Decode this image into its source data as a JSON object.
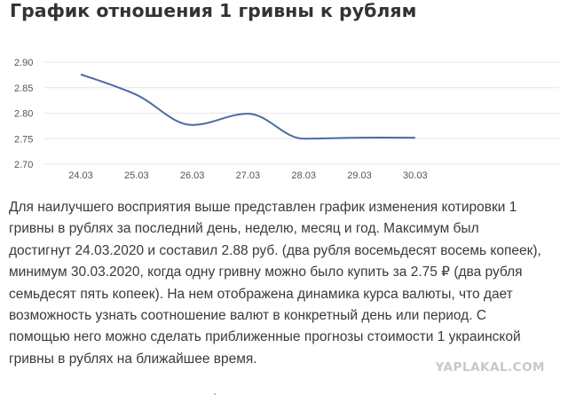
{
  "page": {
    "title": "График отношения 1 гривны к рублям",
    "description": "Для наилучшего восприятия выше представлен график изменения котировки 1 гривны в рублях за последний день, неделю, месяц и год. Максимум был достигнут 24.03.2020 и составил 2.88 руб. (два рубля восемьдесят восемь копеек), минимум 30.03.2020, когда одну гривну можно было купить за 2.75 ₽ (два рубля семьдесят пять копеек). На нем отображена динамика курса валюты, что дает возможность узнать соотношение валют в конкретный день или период. С помощью него можно сделать приближенные прогнозы стоимости 1 украинской гривны в рублях на ближайшее время.",
    "watermark": "YAPLAKAL.COM"
  },
  "chart_data": {
    "type": "line",
    "title": "",
    "xlabel": "",
    "ylabel": "",
    "categories": [
      "24.03",
      "25.03",
      "26.03",
      "27.03",
      "28.03",
      "29.03",
      "30.03"
    ],
    "series": [
      {
        "values": [
          2.876,
          2.836,
          2.777,
          2.799,
          2.75,
          2.752,
          2.752
        ]
      }
    ],
    "ylim": [
      2.7,
      2.9
    ],
    "yticks": [
      "2.70",
      "2.75",
      "2.80",
      "2.85",
      "2.90"
    ],
    "grid": true,
    "line_color": "#4b6aa6",
    "grid_color": "#e6e6e6"
  }
}
